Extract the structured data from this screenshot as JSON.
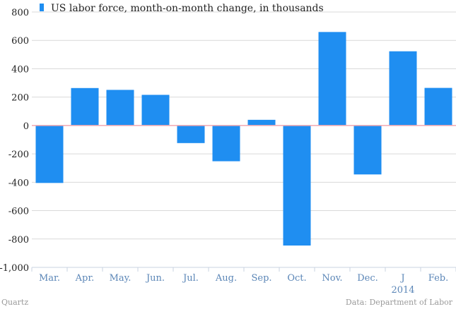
{
  "chart_data": {
    "type": "bar",
    "title": "",
    "xlabel": "",
    "ylabel": "",
    "legend": {
      "label": "US labor force, month-on-month change, in thousands",
      "placement": "top-left"
    },
    "categories": [
      "Mar.",
      "Apr.",
      "May.",
      "Jun.",
      "Jul.",
      "Aug.",
      "Sep.",
      "Oct.",
      "Nov.",
      "Dec.",
      "J",
      "Feb."
    ],
    "category_sublabels": {
      "J": "2014"
    },
    "values": [
      -405,
      264,
      251,
      216,
      -124,
      -252,
      40,
      -846,
      659,
      -345,
      523,
      265
    ],
    "yticks": [
      800,
      600,
      400,
      200,
      0,
      -200,
      -400,
      -600,
      -800,
      -1000
    ],
    "ytick_labels": [
      "800",
      "600",
      "400",
      "200",
      "0",
      "-200",
      "-400",
      "-600",
      "-800",
      "-1,000"
    ],
    "ylim": [
      -1000,
      800
    ],
    "grid": true,
    "colors": {
      "bar": "#1f8ef1",
      "grid": "#d9d9d9",
      "zero_line": "#f2a8b0",
      "axis": "#c8d3e0"
    }
  },
  "footer": {
    "source": "Quartz",
    "credit": "Data: Department of Labor"
  }
}
